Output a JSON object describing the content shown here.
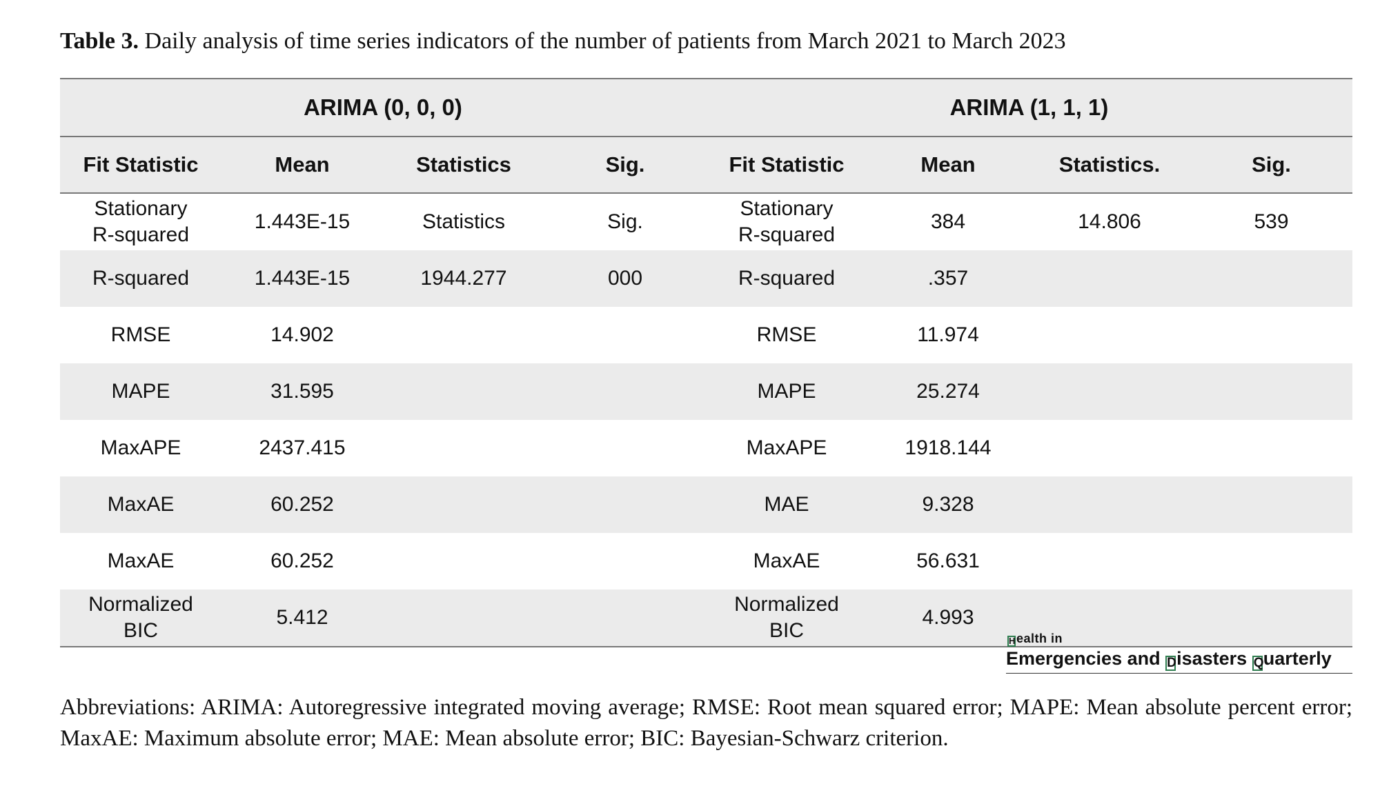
{
  "caption": {
    "label": "Table 3.",
    "text": " Daily analysis of time series indicators of the number of patients from March 2021 to March 2023"
  },
  "table": {
    "groups": [
      "ARIMA (0, 0, 0)",
      "ARIMA (1, 1, 1)"
    ],
    "headers": [
      "Fit Statistic",
      "Mean",
      "Statistics",
      "Sig.",
      "Fit Statistic",
      "Mean",
      "Statistics.",
      "Sig."
    ],
    "rows": [
      [
        "Stationary\nR-squared",
        "1.443E-15",
        "Statistics",
        "Sig.",
        "Stationary\nR-squared",
        "384",
        "14.806",
        "539"
      ],
      [
        "R-squared",
        "1.443E-15",
        "1944.277",
        "000",
        "R-squared",
        ".357",
        "",
        ""
      ],
      [
        "RMSE",
        "14.902",
        "",
        "",
        "RMSE",
        "11.974",
        "",
        ""
      ],
      [
        "MAPE",
        "31.595",
        "",
        "",
        "MAPE",
        "25.274",
        "",
        ""
      ],
      [
        "MaxAPE",
        "2437.415",
        "",
        "",
        "MaxAPE",
        "1918.144",
        "",
        ""
      ],
      [
        "MaxAE",
        "60.252",
        "",
        "",
        "MAE",
        "9.328",
        "",
        ""
      ],
      [
        "MaxAE",
        "60.252",
        "",
        "",
        "MaxAE",
        "56.631",
        "",
        ""
      ],
      [
        "Normalized\nBIC",
        "5.412",
        "",
        "",
        "Normalized\nBIC",
        "4.993",
        "",
        ""
      ]
    ]
  },
  "logo": {
    "top_initial": "H",
    "top_rest": "ealth in",
    "word1": "Emergencies and ",
    "word2_initial": "D",
    "word2_rest": "isasters ",
    "word3_initial": "Q",
    "word3_rest": "uarterly",
    "accent_color": "#2e7d4f"
  },
  "abbreviations": "Abbreviations: ARIMA: Autoregressive integrated moving average; RMSE: Root mean squared error; MAPE: Mean absolute percent error; MaxAE: Maximum absolute error; MAE: Mean absolute error; BIC: Bayesian-Schwarz criterion."
}
